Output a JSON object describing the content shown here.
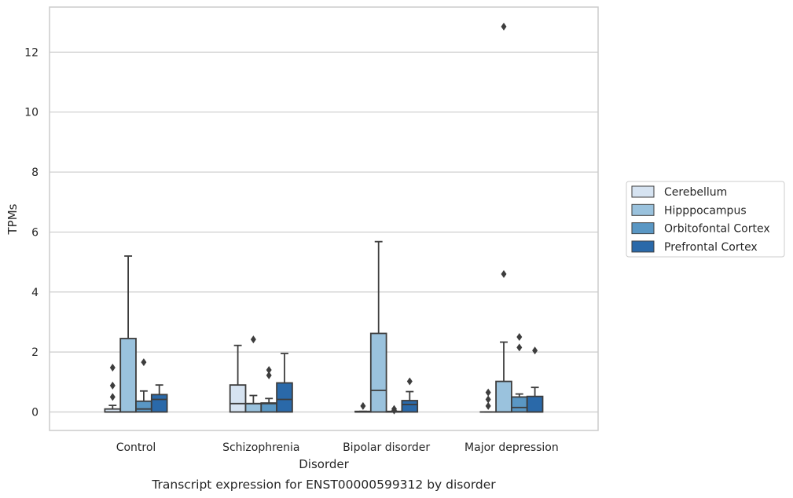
{
  "chart_data": {
    "type": "boxplot",
    "caption": "Transcript expression for ENST00000599312 by disorder",
    "xlabel": "Disorder",
    "ylabel": "TPMs",
    "ylim": [
      -0.63,
      13.5
    ],
    "yticks": [
      0,
      2,
      4,
      6,
      8,
      10,
      12
    ],
    "grid": true,
    "legend_position": "right",
    "categories": [
      "Control",
      "Schizophrenia",
      "Bipolar disorder",
      "Major depression"
    ],
    "series": [
      {
        "name": "Cerebellum",
        "color": "#d6e3f1",
        "boxes": [
          {
            "whislo": 0,
            "q1": 0,
            "med": 0,
            "q3": 0.1,
            "whishi": 0.22,
            "fliers": [
              0.5,
              0.88,
              1.48
            ]
          },
          {
            "whislo": 0,
            "q1": 0,
            "med": 0.28,
            "q3": 0.9,
            "whishi": 2.22,
            "fliers": []
          },
          {
            "whislo": 0,
            "q1": 0,
            "med": 0,
            "q3": 0.02,
            "whishi": 0.02,
            "fliers": [
              0.2
            ]
          },
          {
            "whislo": 0,
            "q1": 0,
            "med": 0,
            "q3": 0,
            "whishi": 0,
            "fliers": [
              0.2,
              0.42,
              0.65
            ]
          }
        ]
      },
      {
        "name": "Hipppocampus",
        "color": "#9ac2dd",
        "boxes": [
          {
            "whislo": 0,
            "q1": 0,
            "med": 0,
            "q3": 2.45,
            "whishi": 5.2,
            "fliers": []
          },
          {
            "whislo": 0,
            "q1": 0,
            "med": 0.28,
            "q3": 0.28,
            "whishi": 0.55,
            "fliers": [
              2.42
            ]
          },
          {
            "whislo": 0,
            "q1": 0,
            "med": 0.72,
            "q3": 2.62,
            "whishi": 5.68,
            "fliers": []
          },
          {
            "whislo": 0,
            "q1": 0,
            "med": 0,
            "q3": 1.02,
            "whishi": 2.33,
            "fliers": [
              4.6,
              12.85
            ]
          }
        ]
      },
      {
        "name": "Orbitofontal Cortex",
        "color": "#5a97c4",
        "boxes": [
          {
            "whislo": 0,
            "q1": 0,
            "med": 0.1,
            "q3": 0.36,
            "whishi": 0.7,
            "fliers": [
              1.66
            ]
          },
          {
            "whislo": 0,
            "q1": 0,
            "med": 0.28,
            "q3": 0.3,
            "whishi": 0.45,
            "fliers": [
              1.22,
              1.4
            ]
          },
          {
            "whislo": 0,
            "q1": 0,
            "med": 0,
            "q3": 0.02,
            "whishi": 0.02,
            "fliers": [
              0.05,
              0.1
            ]
          },
          {
            "whislo": 0,
            "q1": 0,
            "med": 0.15,
            "q3": 0.5,
            "whishi": 0.6,
            "fliers": [
              2.15,
              2.5
            ]
          }
        ]
      },
      {
        "name": "Prefrontal Cortex",
        "color": "#2a69a9",
        "boxes": [
          {
            "whislo": 0,
            "q1": 0,
            "med": 0.42,
            "q3": 0.58,
            "whishi": 0.9,
            "fliers": []
          },
          {
            "whislo": 0,
            "q1": 0,
            "med": 0.42,
            "q3": 0.97,
            "whishi": 1.95,
            "fliers": []
          },
          {
            "whislo": 0,
            "q1": 0,
            "med": 0.25,
            "q3": 0.38,
            "whishi": 0.68,
            "fliers": [
              1.02
            ]
          },
          {
            "whislo": 0,
            "q1": 0,
            "med": 0,
            "q3": 0.52,
            "whishi": 0.82,
            "fliers": [
              2.05
            ]
          }
        ]
      }
    ]
  }
}
